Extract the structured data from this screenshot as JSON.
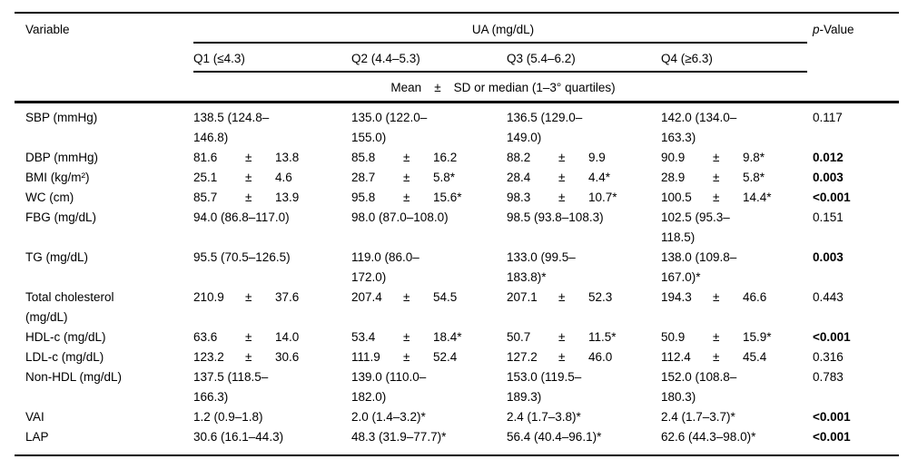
{
  "table": {
    "col1_header": "Variable",
    "group_header": "UA (mg/dL)",
    "p_header": {
      "italic": "p",
      "rest": "-Value"
    },
    "quartiles": [
      "Q1 (≤4.3)",
      "Q2 (4.4–5.3)",
      "Q3 (5.4–6.2)",
      "Q4 (≥6.3)"
    ],
    "stat_line": {
      "left": "Mean",
      "pm": "±",
      "right": "SD or median (1–3° quartiles)"
    },
    "rows": [
      {
        "label": "SBP (mmHg)",
        "cells": [
          {
            "kind": "med",
            "text": "138.5 (124.8–\n146.8)"
          },
          {
            "kind": "med",
            "text": "135.0 (122.0–\n155.0)"
          },
          {
            "kind": "med",
            "text": "136.5 (129.0–\n149.0)"
          },
          {
            "kind": "med",
            "text": "142.0 (134.0–\n163.3)"
          }
        ],
        "p": "0.117",
        "p_bold": false
      },
      {
        "label": "DBP (mmHg)",
        "cells": [
          {
            "kind": "pm",
            "mean": "81.6",
            "sd": "13.8"
          },
          {
            "kind": "pm",
            "mean": "85.8",
            "sd": "16.2"
          },
          {
            "kind": "pm",
            "mean": "88.2",
            "sd": "9.9"
          },
          {
            "kind": "pm",
            "mean": "90.9",
            "sd": "9.8*"
          }
        ],
        "p": "0.012",
        "p_bold": true
      },
      {
        "label": "BMI (kg/m²)",
        "cells": [
          {
            "kind": "pm",
            "mean": "25.1",
            "sd": "4.6"
          },
          {
            "kind": "pm",
            "mean": "28.7",
            "sd": "5.8*"
          },
          {
            "kind": "pm",
            "mean": "28.4",
            "sd": "4.4*"
          },
          {
            "kind": "pm",
            "mean": "28.9",
            "sd": "5.8*"
          }
        ],
        "p": "0.003",
        "p_bold": true
      },
      {
        "label": "WC (cm)",
        "cells": [
          {
            "kind": "pm",
            "mean": "85.7",
            "sd": "13.9"
          },
          {
            "kind": "pm",
            "mean": "95.8",
            "sd": "15.6*"
          },
          {
            "kind": "pm",
            "mean": "98.3",
            "sd": "10.7*"
          },
          {
            "kind": "pm",
            "mean": "100.5",
            "sd": "14.4*"
          }
        ],
        "p": "<0.001",
        "p_bold": true
      },
      {
        "label": "FBG (mg/dL)",
        "cells": [
          {
            "kind": "med",
            "text": "94.0 (86.8–117.0)"
          },
          {
            "kind": "med",
            "text": "98.0 (87.0–108.0)"
          },
          {
            "kind": "med",
            "text": "98.5 (93.8–108.3)"
          },
          {
            "kind": "med",
            "text": "102.5 (95.3–\n118.5)"
          }
        ],
        "p": "0.151",
        "p_bold": false
      },
      {
        "label": "TG (mg/dL)",
        "cells": [
          {
            "kind": "med",
            "text": "95.5 (70.5–126.5)"
          },
          {
            "kind": "med",
            "text": "119.0 (86.0–\n172.0)"
          },
          {
            "kind": "med",
            "text": "133.0 (99.5–\n183.8)*"
          },
          {
            "kind": "med",
            "text": "138.0 (109.8–\n167.0)*"
          }
        ],
        "p": "0.003",
        "p_bold": true
      },
      {
        "label": "Total cholesterol\n(mg/dL)",
        "cells": [
          {
            "kind": "pm",
            "mean": "210.9",
            "sd": "37.6"
          },
          {
            "kind": "pm",
            "mean": "207.4",
            "sd": "54.5"
          },
          {
            "kind": "pm",
            "mean": "207.1",
            "sd": "52.3"
          },
          {
            "kind": "pm",
            "mean": "194.3",
            "sd": "46.6"
          }
        ],
        "p": "0.443",
        "p_bold": false
      },
      {
        "label": "HDL-c (mg/dL)",
        "cells": [
          {
            "kind": "pm",
            "mean": "63.6",
            "sd": "14.0"
          },
          {
            "kind": "pm",
            "mean": "53.4",
            "sd": "18.4*"
          },
          {
            "kind": "pm",
            "mean": "50.7",
            "sd": "11.5*"
          },
          {
            "kind": "pm",
            "mean": "50.9",
            "sd": "15.9*"
          }
        ],
        "p": "<0.001",
        "p_bold": true
      },
      {
        "label": "LDL-c (mg/dL)",
        "cells": [
          {
            "kind": "pm",
            "mean": "123.2",
            "sd": "30.6"
          },
          {
            "kind": "pm",
            "mean": "111.9",
            "sd": "52.4"
          },
          {
            "kind": "pm",
            "mean": "127.2",
            "sd": "46.0"
          },
          {
            "kind": "pm",
            "mean": "112.4",
            "sd": "45.4"
          }
        ],
        "p": "0.316",
        "p_bold": false
      },
      {
        "label": "Non-HDL (mg/dL)",
        "cells": [
          {
            "kind": "med",
            "text": "137.5 (118.5–\n166.3)"
          },
          {
            "kind": "med",
            "text": "139.0 (110.0–\n182.0)"
          },
          {
            "kind": "med",
            "text": "153.0 (119.5–\n189.3)"
          },
          {
            "kind": "med",
            "text": "152.0 (108.8–\n180.3)"
          }
        ],
        "p": "0.783",
        "p_bold": false
      },
      {
        "label": "VAI",
        "cells": [
          {
            "kind": "med",
            "text": "1.2 (0.9–1.8)"
          },
          {
            "kind": "med",
            "text": "2.0 (1.4–3.2)*"
          },
          {
            "kind": "med",
            "text": "2.4 (1.7–3.8)*"
          },
          {
            "kind": "med",
            "text": "2.4 (1.7–3.7)*"
          }
        ],
        "p": "<0.001",
        "p_bold": true
      },
      {
        "label": "LAP",
        "cells": [
          {
            "kind": "med",
            "text": "30.6 (16.1–44.3)"
          },
          {
            "kind": "med",
            "text": "48.3 (31.9–77.7)*"
          },
          {
            "kind": "med",
            "text": "56.4 (40.4–96.1)*"
          },
          {
            "kind": "med",
            "text": "62.6 (44.3–98.0)*"
          }
        ],
        "p": "<0.001",
        "p_bold": true
      }
    ]
  }
}
